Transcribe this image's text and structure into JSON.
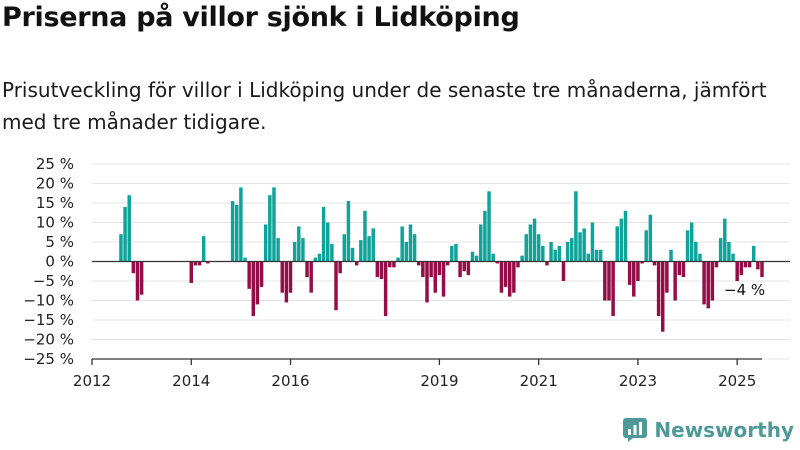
{
  "title": "Priserna på villor sjönk i Lidköping",
  "subtitle": "Prisutveckling för villor i Lidköping under de senaste tre månaderna, jämfört med tre månader tidigare.",
  "brand": {
    "name": "Newsworthy",
    "icon": "newsworthy-logo-icon"
  },
  "colors": {
    "positive": "#10a39a",
    "negative": "#960c46",
    "grid": "#e4e4e4",
    "axis": "#333333"
  },
  "chart_data": {
    "type": "bar",
    "ylim": [
      -25,
      25
    ],
    "y_ticks": [
      {
        "value": 25,
        "label": "25 %"
      },
      {
        "value": 20,
        "label": "20 %"
      },
      {
        "value": 15,
        "label": "15 %"
      },
      {
        "value": 10,
        "label": "10 %"
      },
      {
        "value": 5,
        "label": "5 %"
      },
      {
        "value": 0,
        "label": "0 %"
      },
      {
        "value": -5,
        "label": "−5 %"
      },
      {
        "value": -10,
        "label": "−10 %"
      },
      {
        "value": -15,
        "label": "−15 %"
      },
      {
        "value": -20,
        "label": "−20 %"
      },
      {
        "value": -25,
        "label": "−25 %"
      }
    ],
    "x_ticks": [
      {
        "date": "2012-01",
        "label": "2012"
      },
      {
        "date": "2014-01",
        "label": "2014"
      },
      {
        "date": "2016-01",
        "label": "2016"
      },
      {
        "date": "2019-01",
        "label": "2019"
      },
      {
        "date": "2021-01",
        "label": "2021"
      },
      {
        "date": "2023-01",
        "label": "2023"
      },
      {
        "date": "2025-01",
        "label": "2025"
      }
    ],
    "xlim": [
      "2012-01",
      "2025-07"
    ],
    "start": "2012-08",
    "values": [
      7,
      14,
      17,
      -3,
      -10,
      -8.5,
      null,
      null,
      null,
      null,
      null,
      null,
      null,
      null,
      null,
      null,
      null,
      -5.5,
      -1,
      -1,
      6.5,
      -0.5,
      null,
      null,
      null,
      null,
      null,
      15.5,
      14.5,
      19,
      1,
      -7,
      -14,
      -11,
      -6.5,
      9.5,
      17,
      19,
      6,
      -8,
      -10.5,
      -8,
      5,
      9,
      6,
      -4,
      -8,
      1,
      2,
      14,
      10,
      4.5,
      -12.5,
      -3,
      7,
      15.5,
      3.5,
      -1,
      5.5,
      13,
      6.5,
      8.5,
      -4,
      -4.5,
      -14,
      -1.5,
      -1.5,
      1,
      9,
      5,
      9.5,
      7,
      -1,
      -4,
      -10.5,
      -4,
      -8,
      -3.5,
      -9,
      -1,
      4,
      4.5,
      -4,
      -2.5,
      -3.5,
      2.5,
      1.5,
      9.5,
      13,
      18,
      2,
      -0.5,
      -8,
      -6.5,
      -9,
      -8,
      -1.5,
      1.5,
      7,
      9.5,
      11,
      7,
      4,
      -1,
      5,
      3,
      4,
      -5,
      5,
      6,
      18,
      7.5,
      8.5,
      2,
      10,
      3,
      3,
      -10,
      -10,
      -14,
      9,
      11,
      13,
      -6,
      -9,
      -5,
      -0.5,
      8,
      12,
      -1,
      -14,
      -18,
      -8,
      3,
      -10,
      -3.5,
      -4,
      8,
      10,
      5,
      2,
      -11,
      -12,
      -10,
      -1.5,
      6,
      11,
      5,
      2,
      -5,
      -3.5,
      -1.5,
      -1.5,
      4,
      -2,
      -4
    ],
    "annotation": {
      "text": "−4 %",
      "value": -4
    }
  }
}
